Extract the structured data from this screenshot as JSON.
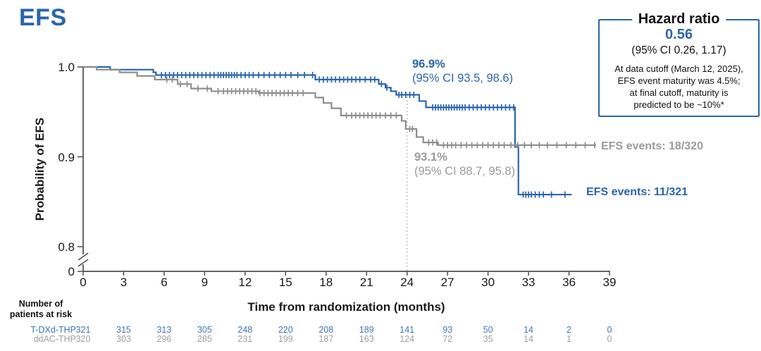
{
  "page": {
    "title": "EFS"
  },
  "colors": {
    "blue": "#2a65ac",
    "gray": "#8e8e8e",
    "blue_text": "#2a65ac",
    "gray_text": "#9a9a9a",
    "risk_blue": "#4076b6",
    "risk_gray": "#9e9e9e",
    "axis": "#4d4d4d",
    "reference_line": "#b3b3b3"
  },
  "hazard_box": {
    "title": "Hazard ratio",
    "value": "0.56",
    "ci": "(95% CI 0.26, 1.17)",
    "note": "At data cutoff (March 12, 2025),\nEFS event maturity was 4.5%;\nat final cutoff, maturity is\npredicted to be ~10%*"
  },
  "annotations": {
    "tdxd": {
      "value": "96.9%",
      "ci": "(95% CI 93.5, 98.6)"
    },
    "ddac": {
      "value": "93.1%",
      "ci": "(95% CI 88.7, 95.8)"
    }
  },
  "events": {
    "ddac": "EFS events: 18/320",
    "tdxd": "EFS events: 11/321"
  },
  "chart_data": {
    "type": "line",
    "subtype": "kaplan-meier-step",
    "title": "EFS",
    "xlabel": "Time from randomization (months)",
    "ylabel": "Probability of EFS",
    "xlim": [
      0,
      39
    ],
    "ylim_shown": [
      0.8,
      1.0
    ],
    "y_axis_break": true,
    "grid": false,
    "x_ticks": [
      0,
      3,
      6,
      9,
      12,
      15,
      18,
      21,
      24,
      27,
      30,
      33,
      36,
      39
    ],
    "y_ticks": [
      {
        "value": 1.0,
        "label": "1.0"
      },
      {
        "value": 0.9,
        "label": "0.9"
      },
      {
        "value": 0.8,
        "label": "0.8"
      },
      {
        "value": 0,
        "label": "0",
        "broken": true
      }
    ],
    "reference_line_x": 24,
    "series": [
      {
        "name": "T-DXd-THP",
        "color": "#2a65ac",
        "estimate_at_24mo": {
          "value": 96.9,
          "ci_low": 93.5,
          "ci_high": 98.6
        },
        "efs_events": "11/321",
        "end_x": 36.2,
        "steps": [
          [
            0,
            1.0
          ],
          [
            2.0,
            0.997
          ],
          [
            5.2,
            0.994
          ],
          [
            5.4,
            0.991
          ],
          [
            17.2,
            0.986
          ],
          [
            21.9,
            0.981
          ],
          [
            22.4,
            0.977
          ],
          [
            22.8,
            0.973
          ],
          [
            23.2,
            0.969
          ],
          [
            24.9,
            0.962
          ],
          [
            25.4,
            0.955
          ],
          [
            32.0,
            0.911
          ],
          [
            32.25,
            0.858
          ]
        ],
        "censor_ticks": [
          5.8,
          6.1,
          6.4,
          6.7,
          7.0,
          7.3,
          7.6,
          7.9,
          8.2,
          8.5,
          8.8,
          9.1,
          9.4,
          9.7,
          10.0,
          10.2,
          10.4,
          10.6,
          10.8,
          11.0,
          11.2,
          11.4,
          11.7,
          12.0,
          12.3,
          12.6,
          13.0,
          13.4,
          13.8,
          14.2,
          14.6,
          15.0,
          15.4,
          15.9,
          16.4,
          17.0,
          17.5,
          17.8,
          18.1,
          18.4,
          18.7,
          19.0,
          19.3,
          19.6,
          19.9,
          20.2,
          20.5,
          20.9,
          21.3,
          21.6,
          22.1,
          22.5,
          23.4,
          23.6,
          23.9,
          24.2,
          24.5,
          25.9,
          26.1,
          26.3,
          26.5,
          26.7,
          26.9,
          27.1,
          27.3,
          27.5,
          27.7,
          27.9,
          28.1,
          28.3,
          28.6,
          28.9,
          29.2,
          29.5,
          29.8,
          30.1,
          30.4,
          30.7,
          31.0,
          31.3,
          31.6,
          31.9,
          32.6,
          32.8,
          33.0,
          33.2,
          33.5,
          33.8,
          34.1,
          34.7,
          35.7
        ]
      },
      {
        "name": "ddAC-THP",
        "color": "#8e8e8e",
        "estimate_at_24mo": {
          "value": 93.1,
          "ci_low": 88.7,
          "ci_high": 95.8
        },
        "efs_events": "18/320",
        "end_x": 38.0,
        "steps": [
          [
            0,
            1.0
          ],
          [
            1.0,
            0.997
          ],
          [
            2.7,
            0.994
          ],
          [
            4.0,
            0.99
          ],
          [
            5.3,
            0.986
          ],
          [
            7.0,
            0.981
          ],
          [
            8.0,
            0.976
          ],
          [
            9.5,
            0.973
          ],
          [
            13.0,
            0.971
          ],
          [
            17.2,
            0.966
          ],
          [
            17.8,
            0.96
          ],
          [
            18.4,
            0.954
          ],
          [
            19.1,
            0.946
          ],
          [
            23.6,
            0.94
          ],
          [
            23.9,
            0.931
          ],
          [
            24.7,
            0.922
          ],
          [
            25.2,
            0.916
          ],
          [
            26.3,
            0.913
          ]
        ],
        "censor_ticks": [
          6.2,
          6.6,
          7.2,
          7.7,
          8.5,
          9.2,
          10.0,
          10.4,
          10.7,
          11.0,
          11.3,
          11.6,
          11.9,
          12.2,
          12.5,
          12.8,
          13.1,
          13.4,
          13.7,
          14.0,
          14.3,
          14.6,
          14.9,
          15.2,
          15.5,
          15.9,
          16.3,
          19.5,
          19.9,
          20.2,
          20.5,
          20.8,
          21.1,
          21.4,
          21.7,
          22.0,
          22.4,
          22.8,
          23.2,
          24.2,
          24.4,
          25.6,
          25.9,
          26.2,
          26.7,
          27.0,
          27.3,
          27.6,
          28.0,
          28.4,
          28.8,
          29.2,
          29.6,
          30.0,
          30.4,
          30.8,
          31.2,
          31.7,
          32.2,
          32.7,
          33.2,
          33.8,
          34.4,
          35.1,
          35.8,
          36.5,
          37.2,
          37.9
        ]
      }
    ],
    "at_risk": {
      "header": "Number of\npatients at risk",
      "rows": [
        {
          "label": "T-DXd-THP",
          "values": [
            321,
            315,
            313,
            305,
            248,
            220,
            208,
            189,
            141,
            93,
            50,
            14,
            2,
            0
          ]
        },
        {
          "label": "ddAC-THP",
          "values": [
            320,
            303,
            296,
            285,
            231,
            199,
            187,
            163,
            124,
            72,
            35,
            14,
            1,
            0
          ]
        }
      ]
    }
  }
}
